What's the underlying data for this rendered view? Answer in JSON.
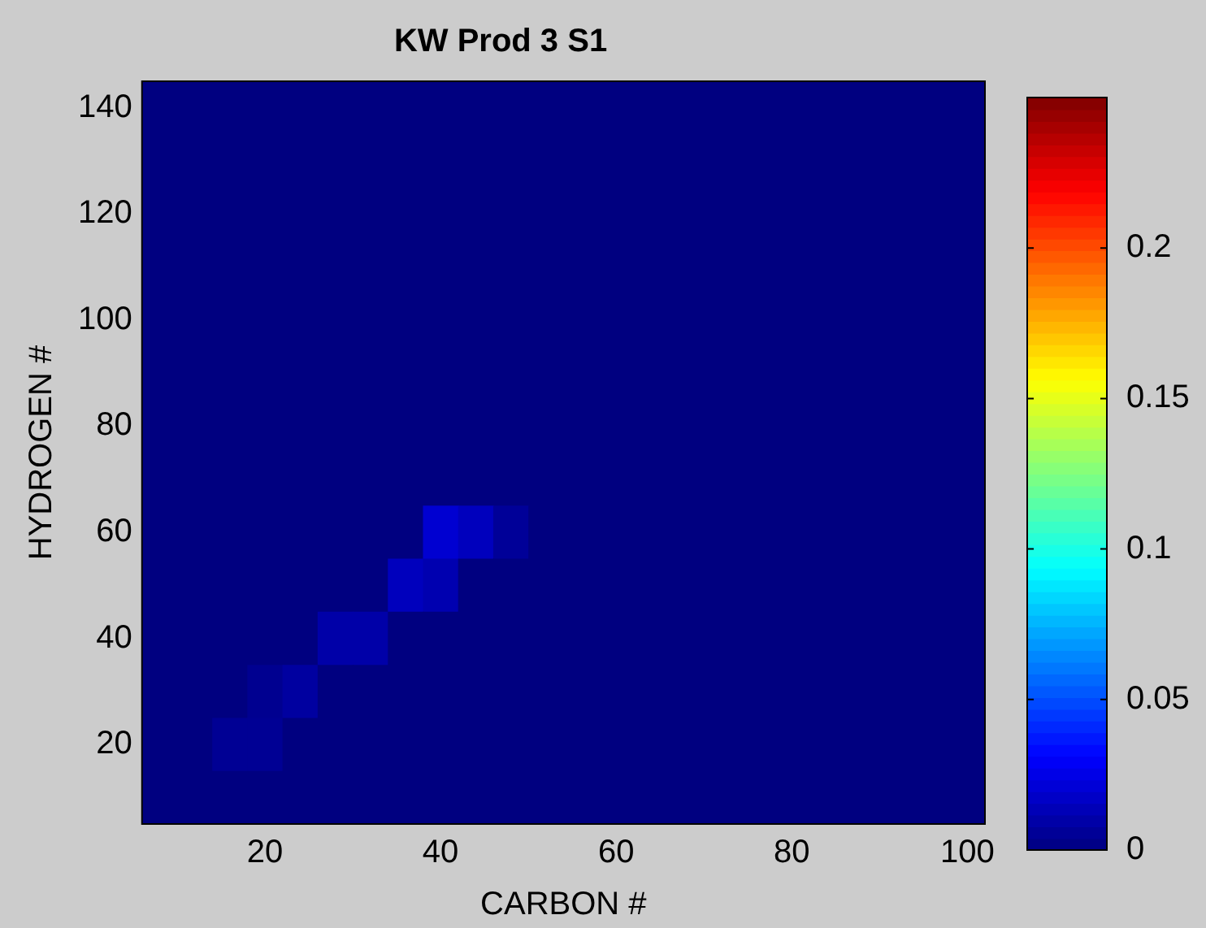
{
  "chart_data": {
    "type": "heatmap",
    "title": "KW Prod 3 S1",
    "xlabel": "CARBON #",
    "ylabel": "HYDROGEN #",
    "categories": [
      null,
      null,
      null,
      "20",
      null,
      null,
      null,
      null,
      "40",
      null,
      null,
      null,
      null,
      "60",
      null,
      null,
      null,
      null,
      "80",
      null,
      null,
      null,
      null,
      "100"
    ],
    "y_categories": [
      "140",
      null,
      "120",
      null,
      "100",
      null,
      "80",
      null,
      "60",
      null,
      "40",
      null,
      "20",
      null
    ],
    "clim": [
      0,
      0.25
    ],
    "cticks": [
      0,
      0.05,
      0.1,
      0.15,
      0.2
    ],
    "cells": [
      [
        0,
        0,
        0,
        0,
        0,
        0,
        0,
        0,
        0,
        0,
        0,
        0,
        0,
        0,
        0,
        0,
        0,
        0,
        0,
        0,
        0,
        0,
        0,
        0
      ],
      [
        0,
        0,
        0,
        0,
        0,
        0,
        0,
        0,
        0,
        0,
        0,
        0,
        0,
        0,
        0,
        0,
        0,
        0,
        0,
        0,
        0,
        0,
        0,
        0
      ],
      [
        0,
        0,
        0,
        0,
        0,
        0,
        0,
        0,
        0,
        0,
        0,
        0,
        0,
        0,
        0,
        0,
        0,
        0,
        0,
        0,
        0,
        0,
        0,
        0
      ],
      [
        0,
        0,
        0,
        0,
        0,
        0,
        0,
        0,
        0,
        0,
        0,
        0,
        0,
        0,
        0,
        0,
        0,
        0,
        0,
        0,
        0,
        0,
        0,
        0
      ],
      [
        0,
        0,
        0,
        0,
        0,
        0,
        0,
        0,
        0,
        0,
        0,
        0,
        0,
        0,
        0,
        0,
        0,
        0,
        0,
        0,
        0,
        0,
        0,
        0
      ],
      [
        0,
        0,
        0,
        0,
        0,
        0,
        0,
        0,
        0,
        0,
        0,
        0,
        0,
        0,
        0,
        0,
        0,
        0,
        0,
        0,
        0,
        0,
        0,
        0
      ],
      [
        0,
        0,
        0,
        0,
        0,
        0,
        0,
        0,
        0,
        0,
        0,
        0,
        0,
        0,
        0,
        0,
        0,
        0,
        0,
        0,
        0,
        0,
        0,
        0
      ],
      [
        0,
        0,
        0,
        0,
        0,
        0,
        0,
        0,
        0,
        0,
        0,
        0,
        0,
        0,
        0,
        0,
        0,
        0,
        0,
        0,
        0,
        0,
        0,
        0
      ],
      [
        0,
        0,
        0,
        0,
        0,
        0,
        0,
        0,
        0.02,
        0.015,
        0.006,
        0,
        0,
        0,
        0,
        0,
        0,
        0,
        0,
        0,
        0,
        0,
        0,
        0
      ],
      [
        0,
        0,
        0,
        0,
        0,
        0,
        0,
        0.015,
        0.012,
        0,
        0,
        0,
        0,
        0,
        0,
        0,
        0,
        0,
        0,
        0,
        0,
        0,
        0,
        0
      ],
      [
        0,
        0,
        0,
        0,
        0,
        0.01,
        0.01,
        0,
        0,
        0,
        0,
        0,
        0,
        0,
        0,
        0,
        0,
        0,
        0,
        0,
        0,
        0,
        0,
        0
      ],
      [
        0,
        0,
        0,
        0.004,
        0.008,
        0,
        0,
        0,
        0,
        0,
        0,
        0,
        0,
        0,
        0,
        0,
        0,
        0,
        0,
        0,
        0,
        0,
        0,
        0
      ],
      [
        0,
        0,
        0.005,
        0.005,
        0,
        0,
        0,
        0,
        0,
        0,
        0,
        0,
        0,
        0,
        0,
        0,
        0,
        0,
        0,
        0,
        0,
        0,
        0,
        0
      ],
      [
        0,
        0,
        0,
        0,
        0,
        0,
        0,
        0,
        0,
        0,
        0,
        0,
        0,
        0,
        0,
        0,
        0,
        0,
        0,
        0,
        0,
        0,
        0,
        0
      ]
    ]
  }
}
